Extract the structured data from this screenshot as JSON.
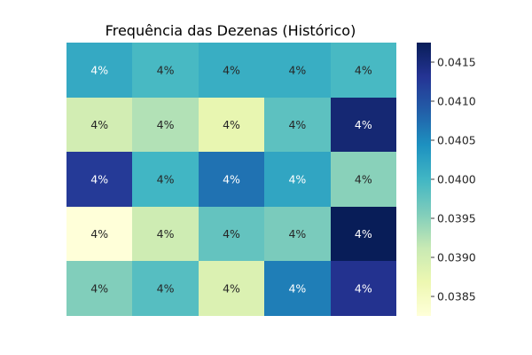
{
  "chart_data": {
    "type": "heatmap",
    "title": "Frequência das Dezenas (Histórico)",
    "xlabel": "",
    "ylabel": "",
    "colormap": "YlGnBu",
    "colormap_stops": [
      "#ffffd9",
      "#edf8b1",
      "#c7e9b4",
      "#7fcdbb",
      "#41b6c4",
      "#1d91c0",
      "#225ea8",
      "#253494",
      "#081d58"
    ],
    "value_range": [
      0.03825,
      0.04175
    ],
    "rows": 5,
    "cols": 5,
    "values": [
      [
        0.04015,
        0.03995,
        0.0401,
        0.0401,
        0.03995
      ],
      [
        0.039,
        0.03925,
        0.03875,
        0.0398,
        0.04155
      ],
      [
        0.04125,
        0.04,
        0.0407,
        0.0402,
        0.0395
      ],
      [
        0.03825,
        0.03905,
        0.03975,
        0.0396,
        0.04175
      ],
      [
        0.03955,
        0.03985,
        0.0389,
        0.0406,
        0.04135
      ]
    ],
    "cell_labels": [
      [
        "4%",
        "4%",
        "4%",
        "4%",
        "4%"
      ],
      [
        "4%",
        "4%",
        "4%",
        "4%",
        "4%"
      ],
      [
        "4%",
        "4%",
        "4%",
        "4%",
        "4%"
      ],
      [
        "4%",
        "4%",
        "4%",
        "4%",
        "4%"
      ],
      [
        "4%",
        "4%",
        "4%",
        "4%",
        "4%"
      ]
    ],
    "colorbar": {
      "ticks": [
        0.0385,
        0.039,
        0.0395,
        0.04,
        0.0405,
        0.041,
        0.0415
      ],
      "tick_labels": [
        "0.0385",
        "0.0390",
        "0.0395",
        "0.0400",
        "0.0405",
        "0.0410",
        "0.0415"
      ]
    }
  }
}
